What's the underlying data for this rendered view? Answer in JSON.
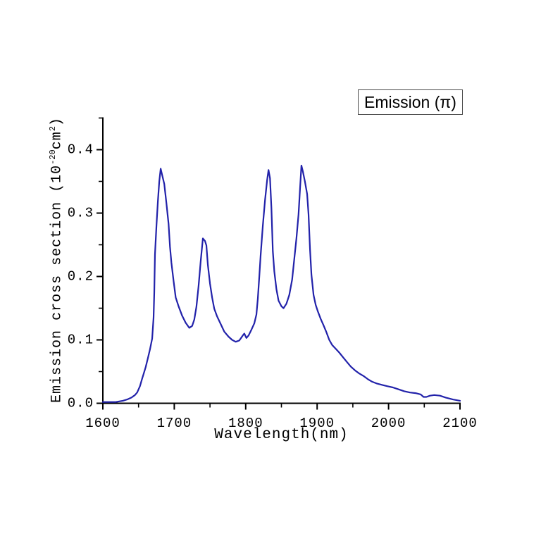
{
  "page": {
    "background": "#ffffff"
  },
  "chart_data": {
    "type": "line",
    "title": "",
    "xlabel": "Wavelength(nm)",
    "ylabel_text": "Emission cross section (10^-20 cm^2)",
    "ylabel_parts": {
      "prefix": "Emission cross section (10",
      "exponent": "-20",
      "unit": "cm",
      "unit_exponent": "2",
      "suffix": ")"
    },
    "legend_label": "Emission (π)",
    "legend_position": "top-right",
    "grid": false,
    "xlim": [
      1600,
      2100
    ],
    "ylim": [
      0,
      0.45
    ],
    "x_major_ticks": [
      1600,
      1700,
      1800,
      1900,
      2000,
      2100
    ],
    "x_minor_ticks": [
      1650,
      1750,
      1850,
      1950,
      2050
    ],
    "y_major_ticks": [
      0.0,
      0.1,
      0.2,
      0.3,
      0.4
    ],
    "y_minor_ticks": [
      0.05,
      0.15,
      0.25,
      0.35,
      0.45
    ],
    "y_tick_labels": [
      "0.0",
      "0.1",
      "0.2",
      "0.3",
      "0.4"
    ],
    "axis_color": "#000000",
    "series": [
      {
        "name": "Emission (π)",
        "color": "#2222aa",
        "points": [
          [
            1600,
            0.002
          ],
          [
            1606,
            0.002
          ],
          [
            1612,
            0.002
          ],
          [
            1618,
            0.002
          ],
          [
            1623,
            0.003
          ],
          [
            1628,
            0.004
          ],
          [
            1634,
            0.006
          ],
          [
            1640,
            0.009
          ],
          [
            1645,
            0.013
          ],
          [
            1648,
            0.017
          ],
          [
            1652,
            0.027
          ],
          [
            1655,
            0.039
          ],
          [
            1657,
            0.046
          ],
          [
            1660,
            0.057
          ],
          [
            1663,
            0.071
          ],
          [
            1666,
            0.085
          ],
          [
            1669,
            0.102
          ],
          [
            1671,
            0.135
          ],
          [
            1672,
            0.175
          ],
          [
            1673,
            0.235
          ],
          [
            1675,
            0.28
          ],
          [
            1677,
            0.318
          ],
          [
            1679,
            0.35
          ],
          [
            1681,
            0.37
          ],
          [
            1683,
            0.36
          ],
          [
            1686,
            0.346
          ],
          [
            1689,
            0.316
          ],
          [
            1692,
            0.283
          ],
          [
            1694,
            0.247
          ],
          [
            1696,
            0.222
          ],
          [
            1699,
            0.193
          ],
          [
            1702,
            0.167
          ],
          [
            1706,
            0.153
          ],
          [
            1711,
            0.138
          ],
          [
            1716,
            0.127
          ],
          [
            1721,
            0.119
          ],
          [
            1725,
            0.122
          ],
          [
            1728,
            0.132
          ],
          [
            1731,
            0.152
          ],
          [
            1734,
            0.185
          ],
          [
            1737,
            0.224
          ],
          [
            1740,
            0.26
          ],
          [
            1743,
            0.256
          ],
          [
            1745,
            0.249
          ],
          [
            1747,
            0.218
          ],
          [
            1750,
            0.189
          ],
          [
            1753,
            0.167
          ],
          [
            1756,
            0.149
          ],
          [
            1760,
            0.137
          ],
          [
            1765,
            0.125
          ],
          [
            1770,
            0.113
          ],
          [
            1776,
            0.105
          ],
          [
            1781,
            0.1
          ],
          [
            1786,
            0.097
          ],
          [
            1791,
            0.099
          ],
          [
            1796,
            0.107
          ],
          [
            1798,
            0.11
          ],
          [
            1801,
            0.103
          ],
          [
            1804,
            0.107
          ],
          [
            1808,
            0.116
          ],
          [
            1812,
            0.126
          ],
          [
            1815,
            0.14
          ],
          [
            1817,
            0.165
          ],
          [
            1819,
            0.2
          ],
          [
            1821,
            0.235
          ],
          [
            1824,
            0.28
          ],
          [
            1827,
            0.32
          ],
          [
            1830,
            0.352
          ],
          [
            1832,
            0.368
          ],
          [
            1834,
            0.355
          ],
          [
            1836,
            0.308
          ],
          [
            1838,
            0.24
          ],
          [
            1840,
            0.208
          ],
          [
            1843,
            0.18
          ],
          [
            1846,
            0.162
          ],
          [
            1850,
            0.153
          ],
          [
            1853,
            0.15
          ],
          [
            1857,
            0.157
          ],
          [
            1861,
            0.171
          ],
          [
            1865,
            0.195
          ],
          [
            1868,
            0.228
          ],
          [
            1871,
            0.26
          ],
          [
            1874,
            0.298
          ],
          [
            1876,
            0.338
          ],
          [
            1878,
            0.375
          ],
          [
            1880,
            0.366
          ],
          [
            1883,
            0.349
          ],
          [
            1886,
            0.33
          ],
          [
            1888,
            0.298
          ],
          [
            1890,
            0.243
          ],
          [
            1892,
            0.203
          ],
          [
            1895,
            0.171
          ],
          [
            1898,
            0.155
          ],
          [
            1901,
            0.145
          ],
          [
            1905,
            0.133
          ],
          [
            1909,
            0.123
          ],
          [
            1913,
            0.112
          ],
          [
            1917,
            0.1
          ],
          [
            1921,
            0.092
          ],
          [
            1926,
            0.086
          ],
          [
            1931,
            0.08
          ],
          [
            1936,
            0.073
          ],
          [
            1941,
            0.066
          ],
          [
            1947,
            0.058
          ],
          [
            1953,
            0.052
          ],
          [
            1959,
            0.047
          ],
          [
            1965,
            0.043
          ],
          [
            1971,
            0.038
          ],
          [
            1977,
            0.034
          ],
          [
            1984,
            0.031
          ],
          [
            1991,
            0.029
          ],
          [
            1998,
            0.027
          ],
          [
            2006,
            0.025
          ],
          [
            2014,
            0.022
          ],
          [
            2022,
            0.019
          ],
          [
            2030,
            0.017
          ],
          [
            2038,
            0.016
          ],
          [
            2045,
            0.014
          ],
          [
            2049,
            0.01
          ],
          [
            2053,
            0.01
          ],
          [
            2058,
            0.012
          ],
          [
            2064,
            0.013
          ],
          [
            2072,
            0.012
          ],
          [
            2080,
            0.009
          ],
          [
            2090,
            0.006
          ],
          [
            2100,
            0.004
          ]
        ]
      }
    ]
  }
}
